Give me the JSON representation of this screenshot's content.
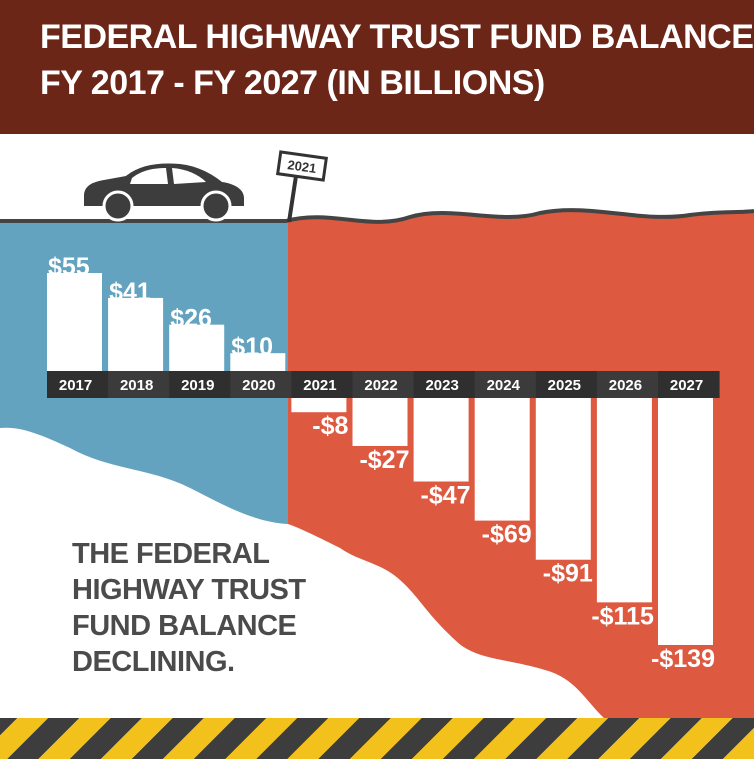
{
  "header": {
    "title_line1": "FEDERAL HIGHWAY TRUST FUND BALANCE",
    "title_line2": "FY 2017 - FY 2027 (IN BILLIONS)"
  },
  "sign_label": "2021",
  "caption_lines": [
    "THE FEDERAL",
    "HIGHWAY TRUST",
    "FUND BALANCE",
    "DECLINING."
  ],
  "colors": {
    "header": "#6b2618",
    "positive_region": "#64a3c0",
    "negative_region": "#dd5a40",
    "year_band": "#2f2f2f",
    "year_band_alt": "#3b3b3b",
    "bars": "#ffffff",
    "hazard_yellow": "#f3c11b",
    "hazard_dark": "#3d3d3d"
  },
  "chart_data": {
    "type": "bar",
    "title": "FEDERAL HIGHWAY TRUST FUND BALANCE FY 2017 - FY 2027 (IN BILLIONS)",
    "categories": [
      "2017",
      "2018",
      "2019",
      "2020",
      "2021",
      "2022",
      "2023",
      "2024",
      "2025",
      "2026",
      "2027"
    ],
    "values": [
      55,
      41,
      26,
      10,
      -8,
      -27,
      -47,
      -69,
      -91,
      -115,
      -139
    ],
    "value_labels": [
      "$55",
      "$41",
      "$26",
      "$10",
      "-$8",
      "-$27",
      "-$47",
      "-$69",
      "-$91",
      "-$115",
      "-$139"
    ],
    "ylim": [
      -139,
      55
    ],
    "grid": false,
    "legend": "none"
  }
}
